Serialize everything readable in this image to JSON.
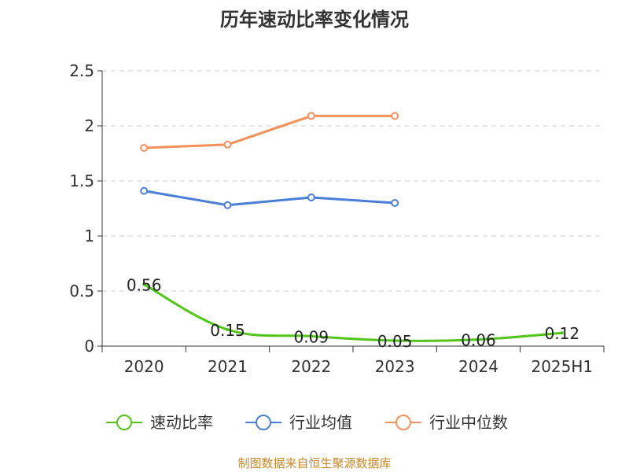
{
  "footer": {
    "source": "制图数据来自恒生聚源数据库"
  },
  "chart_data": {
    "type": "line",
    "title": "历年速动比率变化情况",
    "xlabel": "",
    "ylabel": "",
    "categories": [
      "2020",
      "2021",
      "2022",
      "2023",
      "2024",
      "2025H1"
    ],
    "ylim": [
      0,
      2.5
    ],
    "yticks": [
      "0",
      "0.5",
      "1",
      "1.5",
      "2",
      "2.5"
    ],
    "grid": true,
    "legend": "bottom",
    "series": [
      {
        "name": "速动比率",
        "color": "#52c41a",
        "values": [
          0.56,
          0.15,
          0.09,
          0.05,
          0.06,
          0.12
        ],
        "labels": [
          "0.56",
          "0.15",
          "0.09",
          "0.05",
          "0.06",
          "0.12"
        ],
        "smooth": true
      },
      {
        "name": "行业均值",
        "color": "#4a7fd8",
        "values": [
          1.41,
          1.28,
          1.35,
          1.3,
          null,
          null
        ]
      },
      {
        "name": "行业中位数",
        "color": "#f4905a",
        "values": [
          1.8,
          1.83,
          2.09,
          2.09,
          null,
          null
        ]
      }
    ]
  }
}
